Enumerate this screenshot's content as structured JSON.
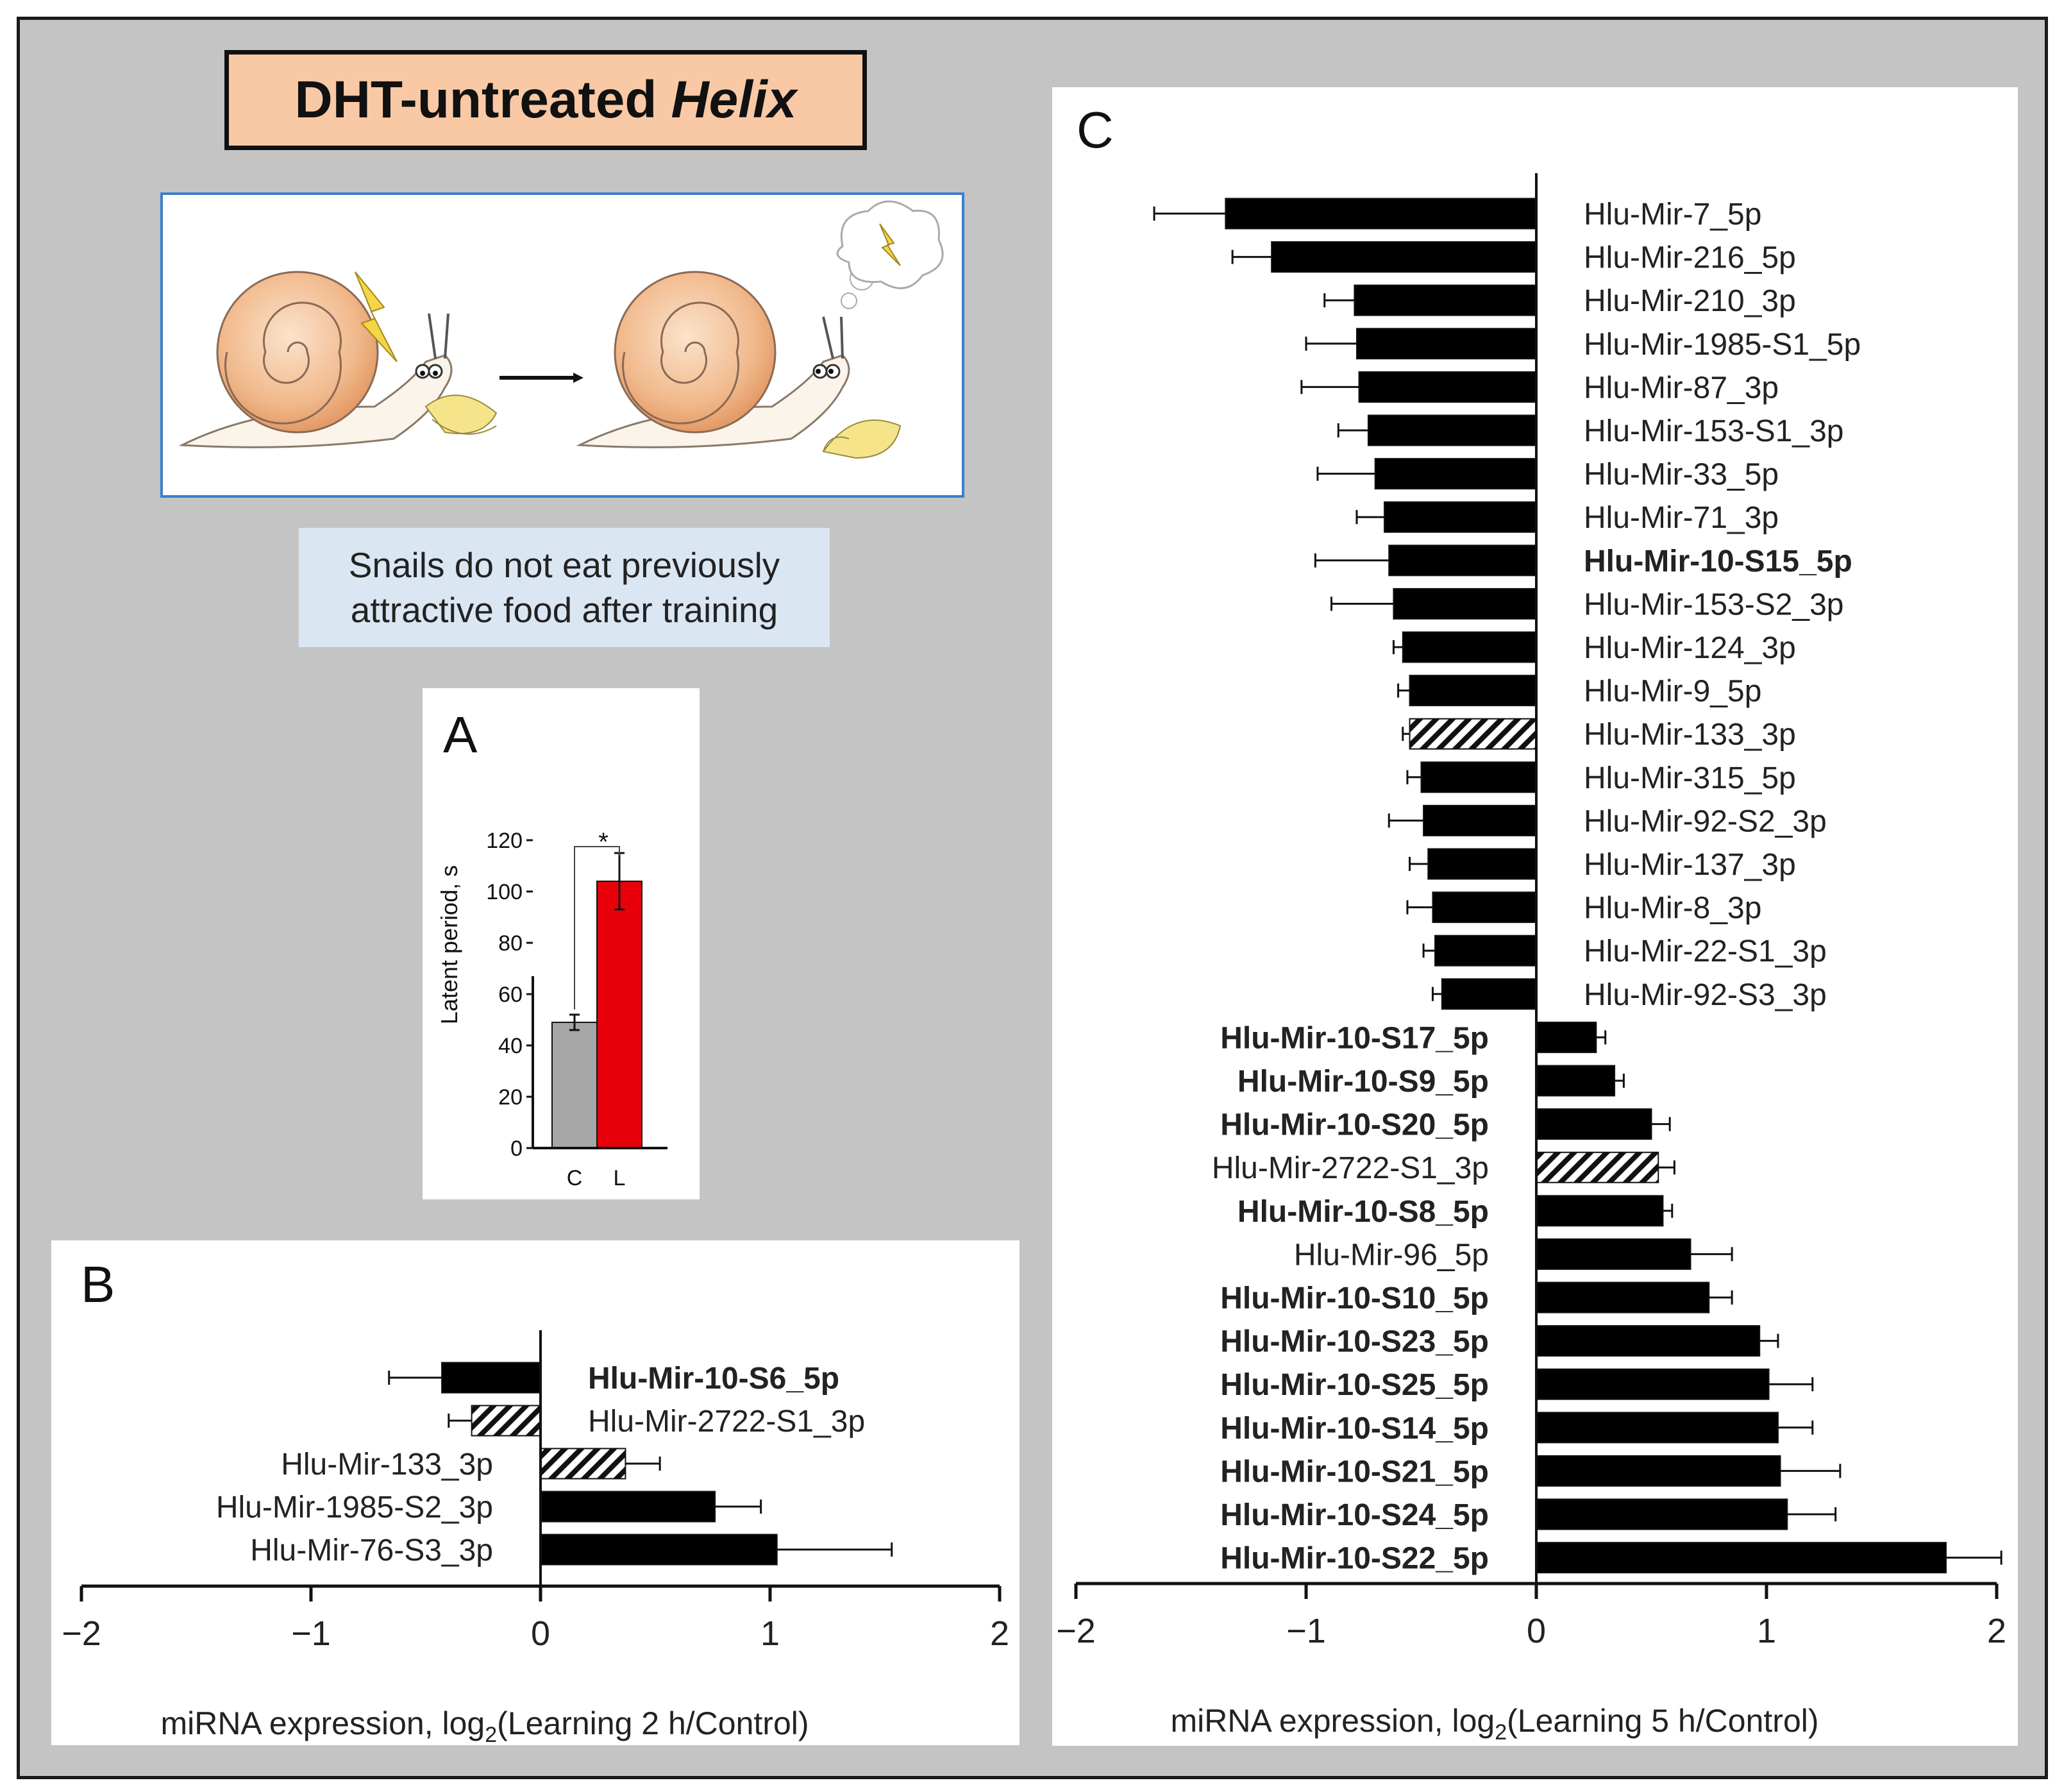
{
  "figure": {
    "title_prefix": "DHT-untreated",
    "title_italic": "Helix",
    "caption_lines": [
      "Snails do not eat previously",
      "attractive food after training"
    ],
    "colors": {
      "background": "#c4c4c4",
      "title_fill": "#f9c9a6",
      "caption_fill": "#dbe6f3",
      "illustration_border": "#3b7fd0",
      "control_bar": "#a6a6a6",
      "learning_bar": "#e8000b",
      "bar": "#000000"
    }
  },
  "chart_data": [
    {
      "panel": "A",
      "type": "bar",
      "ylabel": "Latent period, s",
      "categories": [
        "C",
        "L"
      ],
      "values": [
        49,
        104
      ],
      "errors": [
        3,
        11
      ],
      "ylim": [
        0,
        120
      ],
      "yticks": [
        "0",
        "20",
        "40",
        "60",
        "80",
        "100",
        "120"
      ],
      "significance": "*"
    },
    {
      "panel": "B",
      "type": "bar",
      "orientation": "horizontal",
      "xlabel_main": "miRNA expression, log",
      "xlabel_sub": "2",
      "xlabel_end": "(Learning 2 h/Control)",
      "xlim": [
        -2,
        2
      ],
      "xticks": [
        "−2",
        "−1",
        "0",
        "1",
        "2"
      ],
      "items": [
        {
          "label": "Hlu-Mir-10-S6_5p",
          "value": -0.43,
          "error": 0.23,
          "bold": true,
          "hatched": false
        },
        {
          "label": "Hlu-Mir-2722-S1_3p",
          "value": -0.3,
          "error": 0.1,
          "bold": false,
          "hatched": true
        },
        {
          "label": "Hlu-Mir-133_3p",
          "value": 0.37,
          "error": 0.15,
          "bold": false,
          "hatched": true
        },
        {
          "label": "Hlu-Mir-1985-S2_3p",
          "value": 0.76,
          "error": 0.2,
          "bold": false,
          "hatched": false
        },
        {
          "label": "Hlu-Mir-76-S3_3p",
          "value": 1.03,
          "error": 0.5,
          "bold": false,
          "hatched": false
        }
      ]
    },
    {
      "panel": "C",
      "type": "bar",
      "orientation": "horizontal",
      "xlabel_main": "miRNA expression, log",
      "xlabel_sub": "2",
      "xlabel_end": "(Learning 5 h/Control)",
      "xlim": [
        -2,
        2
      ],
      "xticks": [
        "−2",
        "−1",
        "0",
        "1",
        "2"
      ],
      "items": [
        {
          "label": "Hlu-Mir-7_5p",
          "value": -1.35,
          "error": 0.31,
          "bold": false,
          "hatched": false
        },
        {
          "label": "Hlu-Mir-216_5p",
          "value": -1.15,
          "error": 0.17,
          "bold": false,
          "hatched": false
        },
        {
          "label": "Hlu-Mir-210_3p",
          "value": -0.79,
          "error": 0.13,
          "bold": false,
          "hatched": false
        },
        {
          "label": "Hlu-Mir-1985-S1_5p",
          "value": -0.78,
          "error": 0.22,
          "bold": false,
          "hatched": false
        },
        {
          "label": "Hlu-Mir-87_3p",
          "value": -0.77,
          "error": 0.25,
          "bold": false,
          "hatched": false
        },
        {
          "label": "Hlu-Mir-153-S1_3p",
          "value": -0.73,
          "error": 0.13,
          "bold": false,
          "hatched": false
        },
        {
          "label": "Hlu-Mir-33_5p",
          "value": -0.7,
          "error": 0.25,
          "bold": false,
          "hatched": false
        },
        {
          "label": "Hlu-Mir-71_3p",
          "value": -0.66,
          "error": 0.12,
          "bold": false,
          "hatched": false
        },
        {
          "label": "Hlu-Mir-10-S15_5p",
          "value": -0.64,
          "error": 0.32,
          "bold": true,
          "hatched": false
        },
        {
          "label": "Hlu-Mir-153-S2_3p",
          "value": -0.62,
          "error": 0.27,
          "bold": false,
          "hatched": false
        },
        {
          "label": "Hlu-Mir-124_3p",
          "value": -0.58,
          "error": 0.04,
          "bold": false,
          "hatched": false
        },
        {
          "label": "Hlu-Mir-9_5p",
          "value": -0.55,
          "error": 0.05,
          "bold": false,
          "hatched": false
        },
        {
          "label": "Hlu-Mir-133_3p",
          "value": -0.55,
          "error": 0.03,
          "bold": false,
          "hatched": true
        },
        {
          "label": "Hlu-Mir-315_5p",
          "value": -0.5,
          "error": 0.06,
          "bold": false,
          "hatched": false
        },
        {
          "label": "Hlu-Mir-92-S2_3p",
          "value": -0.49,
          "error": 0.15,
          "bold": false,
          "hatched": false
        },
        {
          "label": "Hlu-Mir-137_3p",
          "value": -0.47,
          "error": 0.08,
          "bold": false,
          "hatched": false
        },
        {
          "label": "Hlu-Mir-8_3p",
          "value": -0.45,
          "error": 0.11,
          "bold": false,
          "hatched": false
        },
        {
          "label": "Hlu-Mir-22-S1_3p",
          "value": -0.44,
          "error": 0.05,
          "bold": false,
          "hatched": false
        },
        {
          "label": "Hlu-Mir-92-S3_3p",
          "value": -0.41,
          "error": 0.04,
          "bold": false,
          "hatched": false
        },
        {
          "label": "Hlu-Mir-10-S17_5p",
          "value": 0.26,
          "error": 0.04,
          "bold": true,
          "hatched": false
        },
        {
          "label": "Hlu-Mir-10-S9_5p",
          "value": 0.34,
          "error": 0.04,
          "bold": true,
          "hatched": false
        },
        {
          "label": "Hlu-Mir-10-S20_5p",
          "value": 0.5,
          "error": 0.08,
          "bold": true,
          "hatched": false
        },
        {
          "label": "Hlu-Mir-2722-S1_3p",
          "value": 0.53,
          "error": 0.07,
          "bold": false,
          "hatched": true
        },
        {
          "label": "Hlu-Mir-10-S8_5p",
          "value": 0.55,
          "error": 0.04,
          "bold": true,
          "hatched": false
        },
        {
          "label": "Hlu-Mir-96_5p",
          "value": 0.67,
          "error": 0.18,
          "bold": false,
          "hatched": false
        },
        {
          "label": "Hlu-Mir-10-S10_5p",
          "value": 0.75,
          "error": 0.1,
          "bold": true,
          "hatched": false
        },
        {
          "label": "Hlu-Mir-10-S23_5p",
          "value": 0.97,
          "error": 0.08,
          "bold": true,
          "hatched": false
        },
        {
          "label": "Hlu-Mir-10-S25_5p",
          "value": 1.01,
          "error": 0.19,
          "bold": true,
          "hatched": false
        },
        {
          "label": "Hlu-Mir-10-S14_5p",
          "value": 1.05,
          "error": 0.15,
          "bold": true,
          "hatched": false
        },
        {
          "label": "Hlu-Mir-10-S21_5p",
          "value": 1.06,
          "error": 0.26,
          "bold": true,
          "hatched": false
        },
        {
          "label": "Hlu-Mir-10-S24_5p",
          "value": 1.09,
          "error": 0.21,
          "bold": true,
          "hatched": false
        },
        {
          "label": "Hlu-Mir-10-S22_5p",
          "value": 1.78,
          "error": 0.24,
          "bold": true,
          "hatched": false
        }
      ]
    }
  ]
}
